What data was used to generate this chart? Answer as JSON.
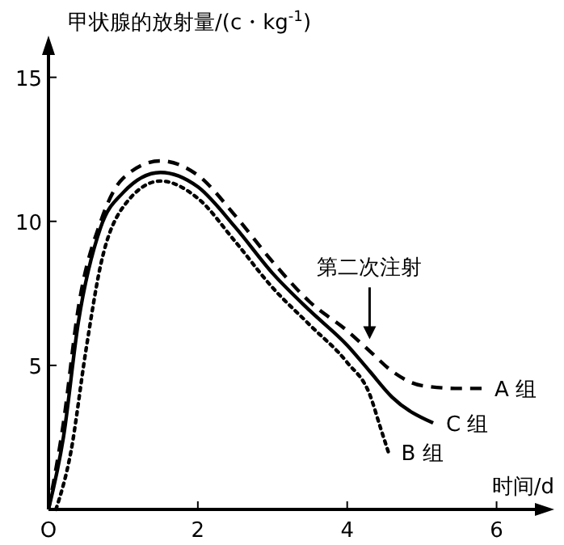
{
  "chart_data": {
    "type": "line",
    "ylabel": "甲状腺的放射量/(c・kg$^{-1}$)",
    "xlabel": "时间/d",
    "xlim": [
      0,
      6.6
    ],
    "ylim": [
      0,
      16
    ],
    "xticks": [
      {
        "value": 0,
        "label": "O"
      },
      2,
      4,
      6
    ],
    "yticks": [
      5,
      10,
      15
    ],
    "grid": false,
    "marker": "none",
    "annotations": [
      {
        "text": "第二次注射",
        "x": 4.3,
        "y": 5.8
      }
    ],
    "series": [
      {
        "name": "A 组",
        "color": "#000000",
        "line_style": "dashed",
        "x": [
          0,
          0.2,
          0.4,
          0.7,
          1,
          1.5,
          2,
          2.5,
          3,
          3.5,
          4,
          4.3,
          4.6,
          5,
          5.5,
          5.8
        ],
        "values": [
          0,
          3,
          7,
          10,
          11.5,
          12.1,
          11.6,
          10.2,
          8.6,
          7.2,
          6.2,
          5.5,
          4.8,
          4.3,
          4.2,
          4.2
        ]
      },
      {
        "name": "B 组",
        "color": "#000000",
        "line_style": "dotted",
        "x": [
          0.1,
          0.3,
          0.5,
          0.7,
          1,
          1.5,
          2,
          2.5,
          3,
          3.5,
          4,
          4.3,
          4.45,
          4.55
        ],
        "values": [
          0,
          2,
          5.5,
          8.5,
          10.5,
          11.4,
          10.8,
          9.3,
          7.7,
          6.4,
          5.1,
          4,
          2.8,
          2
        ]
      },
      {
        "name": "C 组",
        "color": "#000000",
        "line_style": "solid",
        "x": [
          0,
          0.2,
          0.4,
          0.7,
          1,
          1.5,
          2,
          2.5,
          3,
          3.5,
          4,
          4.3,
          4.6,
          5.15
        ],
        "values": [
          0,
          2.5,
          6.5,
          9.8,
          11,
          11.7,
          11.2,
          9.8,
          8.2,
          6.9,
          5.7,
          4.8,
          3.9,
          3
        ]
      }
    ]
  }
}
